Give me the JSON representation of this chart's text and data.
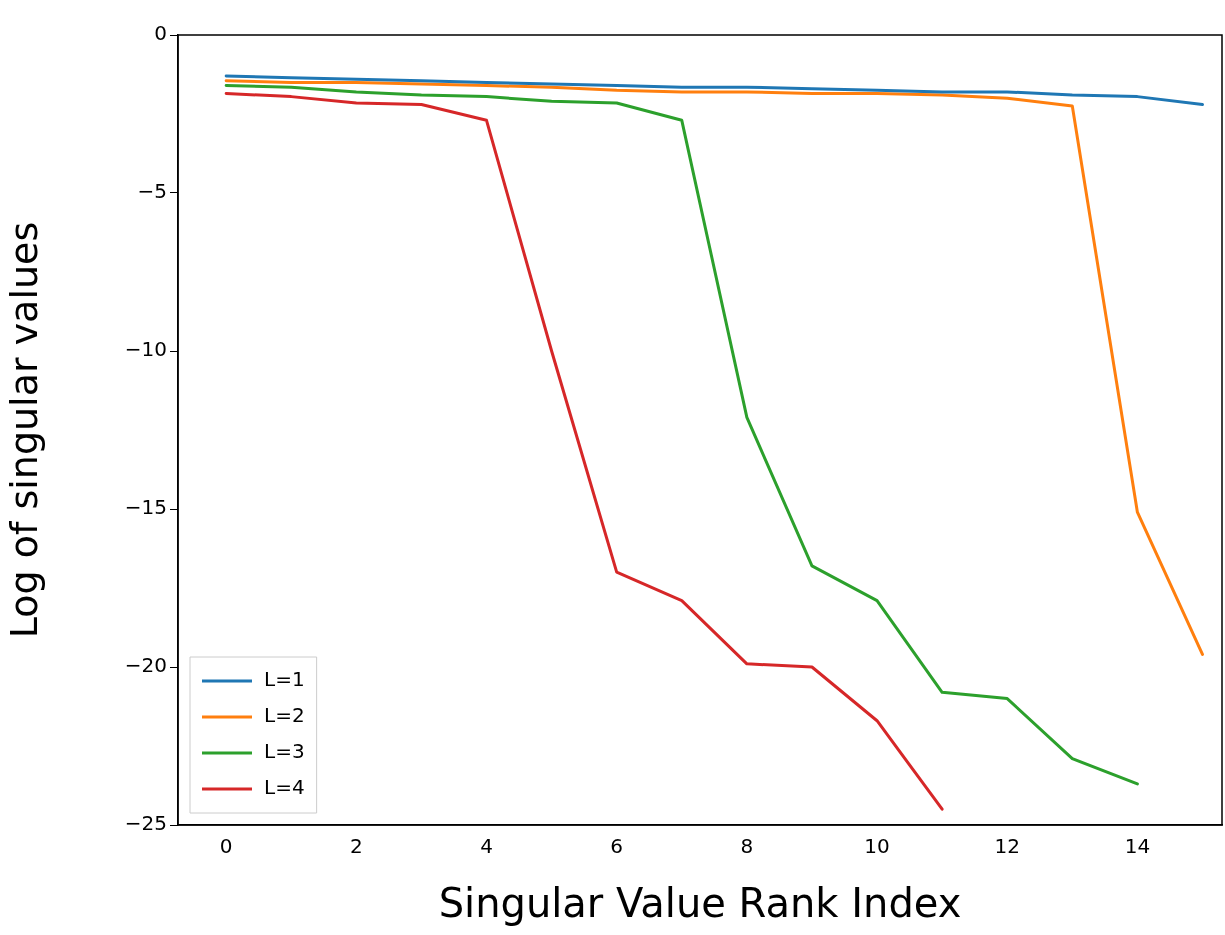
{
  "chart_data": {
    "type": "line",
    "xlabel": "Singular Value Rank Index",
    "ylabel": "Log of singular values",
    "x": [
      0,
      1,
      2,
      3,
      4,
      5,
      6,
      7,
      8,
      9,
      10,
      11,
      12,
      13,
      14,
      15
    ],
    "xlim": [
      -0.74,
      15.3
    ],
    "ylim": [
      -25,
      0
    ],
    "xticks": [
      0,
      2,
      4,
      6,
      8,
      10,
      12,
      14
    ],
    "yticks": [
      -25,
      -20,
      -15,
      -10,
      -5,
      0
    ],
    "grid": false,
    "legend": "bottom left",
    "line_style": "solid",
    "series": [
      {
        "name": "L=1",
        "color": "#1f77b4",
        "values": [
          -1.3,
          -1.35,
          -1.4,
          -1.45,
          -1.5,
          -1.55,
          -1.6,
          -1.65,
          -1.65,
          -1.7,
          -1.75,
          -1.8,
          -1.8,
          -1.9,
          -1.95,
          -2.2
        ]
      },
      {
        "name": "L=2",
        "color": "#ff7f0e",
        "values": [
          -1.45,
          -1.5,
          -1.5,
          -1.55,
          -1.6,
          -1.65,
          -1.75,
          -1.8,
          -1.8,
          -1.85,
          -1.85,
          -1.9,
          -2.0,
          -2.25,
          -15.1,
          -19.6
        ]
      },
      {
        "name": "L=3",
        "color": "#2ca02c",
        "values": [
          -1.6,
          -1.65,
          -1.8,
          -1.9,
          -1.95,
          -2.1,
          -2.15,
          -2.7,
          -12.1,
          -16.8,
          -17.9,
          -20.8,
          -21.0,
          -22.9,
          -23.7,
          null
        ]
      },
      {
        "name": "L=4",
        "color": "#d62728",
        "values": [
          -1.85,
          -1.95,
          -2.15,
          -2.2,
          -2.7,
          -10.0,
          -17.0,
          -17.9,
          -19.9,
          -20.0,
          -21.7,
          -24.5,
          null,
          null,
          null,
          null
        ]
      }
    ]
  }
}
